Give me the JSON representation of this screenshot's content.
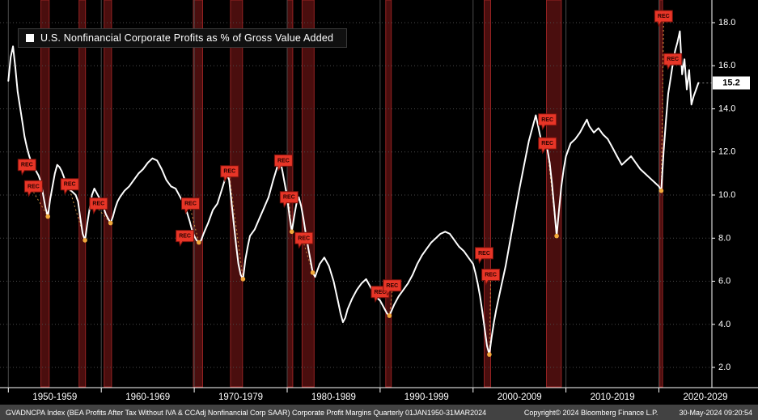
{
  "legend": {
    "label": "U.S. Nonfinancial Corporate Profits as % of Gross Value Added",
    "swatch_color": "#ffffff"
  },
  "footer": {
    "left": "GVADNCPA Index (BEA Profits After Tax Without IVA & CCAdj Nonfinancial Corp SAAR) Corporate Profit Margins  Quarterly 01JAN1950-31MAR2024",
    "copyright": "Copyright© 2024 Bloomberg Finance L.P.",
    "timestamp": "30-May-2024 09:20:54"
  },
  "colors": {
    "background": "#000000",
    "line": "#ffffff",
    "grid": "#4a4a4a",
    "axis": "#ffffff",
    "recession_fill": "#4a0e0e",
    "recession_edge": "#952222",
    "rec_tag_fill": "#e73527",
    "rec_tag_edge": "#7e120c",
    "rec_tag_text": "#2a0300",
    "dot": "#f2a93b",
    "connector": "#c98f3d",
    "last_value_bg": "#ffffff",
    "last_value_text": "#000000",
    "footer_bg": "#424242",
    "footer_text": "#ffffff"
  },
  "chart_data": {
    "type": "line",
    "title": "U.S. Nonfinancial Corporate Profits as % of Gross Value Added",
    "xlabel": "",
    "ylabel": "Profits as % of Gross Value Added",
    "xlim": [
      1949.1,
      2025.7
    ],
    "ylim": [
      1.1,
      19.05
    ],
    "grid": "horizontal dotted gray + vertical decade lines",
    "legend_position": "top-left",
    "y_axis": {
      "tick_values": [
        2,
        4,
        6,
        8,
        10,
        12,
        14,
        16,
        18
      ],
      "tick_labels": [
        "2.0",
        "4.0",
        "6.0",
        "8.0",
        "10.0",
        "12.0",
        "14.0",
        "16.0",
        "18.0"
      ]
    },
    "x_axis": {
      "labels": [
        "1950-1959",
        "1960-1969",
        "1970-1979",
        "1980-1989",
        "1990-1999",
        "2000-2009",
        "2010-2019",
        "2020-2029"
      ],
      "centers": [
        1955,
        1965,
        1975,
        1985,
        1995,
        2005,
        2015,
        2025
      ],
      "decade_lines": [
        1950,
        1960,
        1970,
        1980,
        1990,
        2000,
        2010,
        2020
      ]
    },
    "last_value": {
      "label": "15.2",
      "value": 15.2
    },
    "recessions": [
      [
        1953.5,
        1954.4
      ],
      [
        1957.6,
        1958.3
      ],
      [
        1960.3,
        1961.1
      ],
      [
        1969.9,
        1970.9
      ],
      [
        1973.9,
        1975.2
      ],
      [
        1980.0,
        1980.6
      ],
      [
        1981.6,
        1982.9
      ],
      [
        1990.6,
        1991.2
      ],
      [
        2001.2,
        2001.9
      ],
      [
        2007.9,
        2009.5
      ],
      [
        2020.1,
        2020.4
      ]
    ],
    "markers": [
      {
        "x": 1952.0,
        "v": 11.4
      },
      {
        "x": 1952.7,
        "v": 10.4,
        "dot": [
          1954.25,
          9.0
        ]
      },
      {
        "x": 1956.6,
        "v": 10.5,
        "dot": [
          1958.25,
          7.9
        ]
      },
      {
        "x": 1959.7,
        "v": 9.6,
        "dot": [
          1961.0,
          8.7
        ]
      },
      {
        "x": 1969.0,
        "v": 8.1
      },
      {
        "x": 1969.6,
        "v": 9.6,
        "dot": [
          1970.5,
          7.8
        ]
      },
      {
        "x": 1973.8,
        "v": 11.1,
        "dot": [
          1975.25,
          6.1
        ]
      },
      {
        "x": 1979.6,
        "v": 11.6
      },
      {
        "x": 1980.2,
        "v": 9.9,
        "dot": [
          1980.5,
          8.3
        ]
      },
      {
        "x": 1981.8,
        "v": 8.0,
        "dot": [
          1982.75,
          6.4
        ]
      },
      {
        "x": 1990.0,
        "v": 5.5
      },
      {
        "x": 1991.3,
        "v": 5.8,
        "dot": [
          1991.0,
          4.4
        ]
      },
      {
        "x": 2001.2,
        "v": 7.3
      },
      {
        "x": 2001.9,
        "v": 6.3,
        "dot": [
          2001.75,
          2.6
        ]
      },
      {
        "x": 2008.0,
        "v": 13.5
      },
      {
        "x": 2008.0,
        "v": 12.4,
        "dot": [
          2009.0,
          8.1
        ]
      },
      {
        "x": 2020.5,
        "v": 18.3,
        "dot": [
          2020.25,
          10.2
        ]
      },
      {
        "x": 2021.5,
        "v": 16.3
      }
    ],
    "dots": [
      [
        1954.25,
        9.0
      ],
      [
        1958.25,
        7.9
      ],
      [
        1961.0,
        8.7
      ],
      [
        1970.5,
        7.8
      ],
      [
        1975.25,
        6.1
      ],
      [
        1980.5,
        8.3
      ],
      [
        1982.75,
        6.4
      ],
      [
        1991.0,
        4.4
      ],
      [
        2001.75,
        2.6
      ],
      [
        2009.0,
        8.1
      ],
      [
        2020.25,
        10.2
      ]
    ],
    "series": [
      {
        "name": "U.S. Nonfinancial Corporate Profits as % of Gross Value Added",
        "color": "#ffffff",
        "points": [
          [
            1950.0,
            15.3
          ],
          [
            1950.25,
            16.4
          ],
          [
            1950.5,
            16.9
          ],
          [
            1950.75,
            15.9
          ],
          [
            1951.0,
            14.8
          ],
          [
            1951.25,
            14.1
          ],
          [
            1951.5,
            13.4
          ],
          [
            1951.75,
            12.7
          ],
          [
            1952.0,
            12.2
          ],
          [
            1952.25,
            11.8
          ],
          [
            1952.5,
            11.5
          ],
          [
            1952.75,
            11.3
          ],
          [
            1953.0,
            11.1
          ],
          [
            1953.25,
            10.9
          ],
          [
            1953.5,
            10.6
          ],
          [
            1953.75,
            10.0
          ],
          [
            1954.0,
            9.4
          ],
          [
            1954.25,
            9.0
          ],
          [
            1954.5,
            9.8
          ],
          [
            1954.75,
            10.4
          ],
          [
            1955.0,
            11.0
          ],
          [
            1955.25,
            11.4
          ],
          [
            1955.5,
            11.3
          ],
          [
            1955.75,
            11.1
          ],
          [
            1956.0,
            10.8
          ],
          [
            1956.25,
            10.5
          ],
          [
            1956.5,
            10.3
          ],
          [
            1956.75,
            10.2
          ],
          [
            1957.0,
            10.1
          ],
          [
            1957.25,
            10.0
          ],
          [
            1957.5,
            9.7
          ],
          [
            1957.75,
            8.9
          ],
          [
            1958.0,
            8.2
          ],
          [
            1958.25,
            7.9
          ],
          [
            1958.5,
            8.7
          ],
          [
            1958.75,
            9.4
          ],
          [
            1959.0,
            10.0
          ],
          [
            1959.25,
            10.3
          ],
          [
            1959.5,
            10.1
          ],
          [
            1959.75,
            9.9
          ],
          [
            1960.0,
            9.8
          ],
          [
            1960.25,
            9.4
          ],
          [
            1960.5,
            9.1
          ],
          [
            1960.75,
            8.9
          ],
          [
            1961.0,
            8.7
          ],
          [
            1961.25,
            9.0
          ],
          [
            1961.5,
            9.4
          ],
          [
            1961.75,
            9.7
          ],
          [
            1962.0,
            9.9
          ],
          [
            1962.5,
            10.2
          ],
          [
            1963.0,
            10.4
          ],
          [
            1963.5,
            10.7
          ],
          [
            1964.0,
            11.0
          ],
          [
            1964.5,
            11.2
          ],
          [
            1965.0,
            11.5
          ],
          [
            1965.5,
            11.7
          ],
          [
            1966.0,
            11.6
          ],
          [
            1966.5,
            11.2
          ],
          [
            1967.0,
            10.7
          ],
          [
            1967.5,
            10.4
          ],
          [
            1968.0,
            10.3
          ],
          [
            1968.5,
            9.9
          ],
          [
            1969.0,
            9.5
          ],
          [
            1969.5,
            8.8
          ],
          [
            1969.75,
            8.4
          ],
          [
            1970.0,
            8.1
          ],
          [
            1970.25,
            7.9
          ],
          [
            1970.5,
            7.8
          ],
          [
            1970.75,
            7.9
          ],
          [
            1971.0,
            8.2
          ],
          [
            1971.5,
            8.7
          ],
          [
            1972.0,
            9.3
          ],
          [
            1972.5,
            9.6
          ],
          [
            1973.0,
            10.3
          ],
          [
            1973.5,
            11.0
          ],
          [
            1973.75,
            10.7
          ],
          [
            1974.0,
            9.7
          ],
          [
            1974.25,
            8.7
          ],
          [
            1974.5,
            7.7
          ],
          [
            1974.75,
            6.8
          ],
          [
            1975.0,
            6.3
          ],
          [
            1975.25,
            6.1
          ],
          [
            1975.5,
            7.0
          ],
          [
            1975.75,
            7.6
          ],
          [
            1976.0,
            8.1
          ],
          [
            1976.5,
            8.4
          ],
          [
            1977.0,
            8.9
          ],
          [
            1977.5,
            9.4
          ],
          [
            1978.0,
            9.9
          ],
          [
            1978.5,
            10.7
          ],
          [
            1979.0,
            11.4
          ],
          [
            1979.25,
            11.6
          ],
          [
            1979.5,
            11.1
          ],
          [
            1979.75,
            10.5
          ],
          [
            1980.0,
            9.9
          ],
          [
            1980.25,
            9.0
          ],
          [
            1980.5,
            8.3
          ],
          [
            1980.75,
            9.0
          ],
          [
            1981.0,
            9.6
          ],
          [
            1981.25,
            9.9
          ],
          [
            1981.5,
            9.5
          ],
          [
            1981.75,
            8.9
          ],
          [
            1982.0,
            8.2
          ],
          [
            1982.25,
            7.6
          ],
          [
            1982.5,
            7.0
          ],
          [
            1982.75,
            6.4
          ],
          [
            1983.0,
            6.2
          ],
          [
            1983.25,
            6.5
          ],
          [
            1983.5,
            6.8
          ],
          [
            1984.0,
            7.1
          ],
          [
            1984.5,
            6.7
          ],
          [
            1985.0,
            6.0
          ],
          [
            1985.25,
            5.5
          ],
          [
            1985.5,
            5.0
          ],
          [
            1985.75,
            4.5
          ],
          [
            1986.0,
            4.1
          ],
          [
            1986.25,
            4.3
          ],
          [
            1986.5,
            4.7
          ],
          [
            1987.0,
            5.2
          ],
          [
            1987.5,
            5.6
          ],
          [
            1988.0,
            5.9
          ],
          [
            1988.5,
            6.1
          ],
          [
            1989.0,
            5.7
          ],
          [
            1989.5,
            5.3
          ],
          [
            1990.0,
            5.1
          ],
          [
            1990.5,
            4.7
          ],
          [
            1990.75,
            4.5
          ],
          [
            1991.0,
            4.4
          ],
          [
            1991.5,
            4.9
          ],
          [
            1992.0,
            5.3
          ],
          [
            1992.5,
            5.6
          ],
          [
            1993.0,
            5.9
          ],
          [
            1993.5,
            6.3
          ],
          [
            1994.0,
            6.8
          ],
          [
            1994.5,
            7.2
          ],
          [
            1995.0,
            7.5
          ],
          [
            1995.5,
            7.8
          ],
          [
            1996.0,
            8.0
          ],
          [
            1996.5,
            8.2
          ],
          [
            1997.0,
            8.3
          ],
          [
            1997.5,
            8.2
          ],
          [
            1998.0,
            7.9
          ],
          [
            1998.5,
            7.6
          ],
          [
            1999.0,
            7.4
          ],
          [
            1999.5,
            7.1
          ],
          [
            2000.0,
            6.8
          ],
          [
            2000.25,
            6.4
          ],
          [
            2000.5,
            5.9
          ],
          [
            2000.75,
            5.3
          ],
          [
            2001.0,
            4.6
          ],
          [
            2001.25,
            3.8
          ],
          [
            2001.5,
            3.0
          ],
          [
            2001.75,
            2.6
          ],
          [
            2002.0,
            3.4
          ],
          [
            2002.25,
            4.1
          ],
          [
            2002.5,
            4.7
          ],
          [
            2003.0,
            5.7
          ],
          [
            2003.5,
            6.7
          ],
          [
            2004.0,
            7.9
          ],
          [
            2004.5,
            9.1
          ],
          [
            2005.0,
            10.3
          ],
          [
            2005.5,
            11.4
          ],
          [
            2006.0,
            12.5
          ],
          [
            2006.5,
            13.3
          ],
          [
            2006.75,
            13.7
          ],
          [
            2007.0,
            13.2
          ],
          [
            2007.25,
            12.7
          ],
          [
            2007.5,
            12.3
          ],
          [
            2007.75,
            12.6
          ],
          [
            2008.0,
            12.1
          ],
          [
            2008.25,
            11.5
          ],
          [
            2008.5,
            10.5
          ],
          [
            2008.75,
            9.3
          ],
          [
            2009.0,
            8.1
          ],
          [
            2009.25,
            9.3
          ],
          [
            2009.5,
            10.4
          ],
          [
            2009.75,
            11.2
          ],
          [
            2010.0,
            11.8
          ],
          [
            2010.5,
            12.4
          ],
          [
            2011.0,
            12.6
          ],
          [
            2011.5,
            12.9
          ],
          [
            2012.0,
            13.3
          ],
          [
            2012.25,
            13.5
          ],
          [
            2012.5,
            13.2
          ],
          [
            2013.0,
            12.9
          ],
          [
            2013.5,
            13.1
          ],
          [
            2014.0,
            12.8
          ],
          [
            2014.5,
            12.6
          ],
          [
            2015.0,
            12.2
          ],
          [
            2015.5,
            11.8
          ],
          [
            2016.0,
            11.4
          ],
          [
            2016.5,
            11.6
          ],
          [
            2017.0,
            11.8
          ],
          [
            2017.5,
            11.5
          ],
          [
            2018.0,
            11.2
          ],
          [
            2018.5,
            11.0
          ],
          [
            2019.0,
            10.8
          ],
          [
            2019.5,
            10.6
          ],
          [
            2020.0,
            10.4
          ],
          [
            2020.25,
            10.2
          ],
          [
            2020.5,
            12.0
          ],
          [
            2020.75,
            13.4
          ],
          [
            2021.0,
            14.7
          ],
          [
            2021.25,
            15.4
          ],
          [
            2021.5,
            16.1
          ],
          [
            2021.75,
            16.7
          ],
          [
            2022.0,
            17.1
          ],
          [
            2022.25,
            17.6
          ],
          [
            2022.5,
            15.6
          ],
          [
            2022.75,
            16.3
          ],
          [
            2023.0,
            14.9
          ],
          [
            2023.25,
            15.8
          ],
          [
            2023.5,
            14.2
          ],
          [
            2023.75,
            14.6
          ],
          [
            2024.0,
            14.9
          ],
          [
            2024.25,
            15.2
          ]
        ]
      }
    ]
  }
}
